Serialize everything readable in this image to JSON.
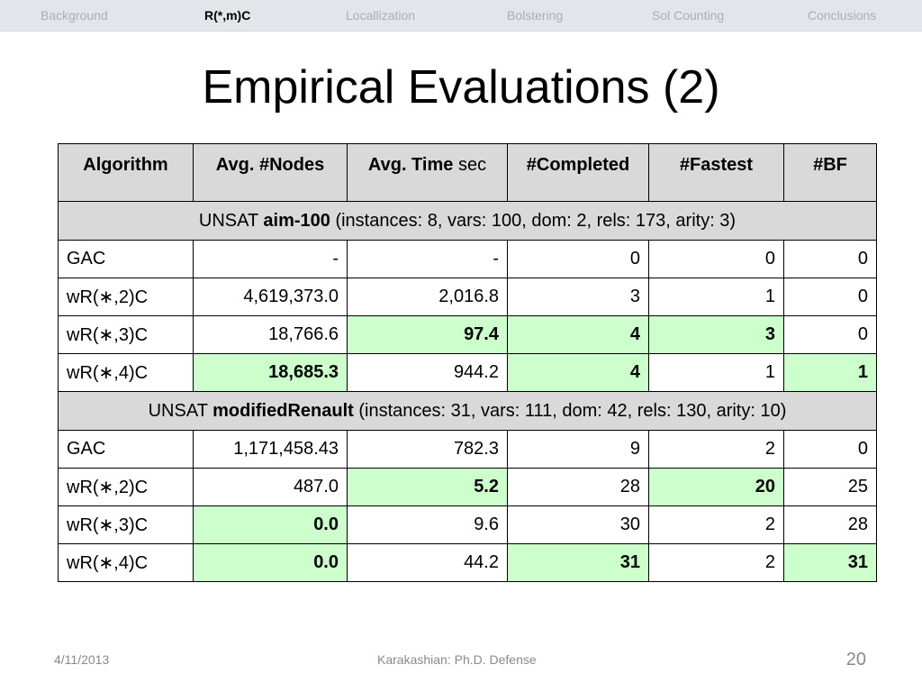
{
  "nav": {
    "items": [
      "Background",
      "R(*,m)C",
      "Locallization",
      "Bolstering",
      "Sol Counting",
      "Conclusions"
    ],
    "active_index": 1
  },
  "title": "Empirical Evaluations (2)",
  "table": {
    "headers": {
      "algorithm": "Algorithm",
      "avg_nodes": "Avg. #Nodes",
      "avg_time": "Avg. Time",
      "avg_time_unit": "sec",
      "completed": "#Completed",
      "fastest": "#Fastest",
      "bf": "#BF"
    },
    "groups": [
      {
        "prefix": "UNSAT ",
        "name": "aim-100",
        "details": " (instances: 8, vars: 100, dom: 2, rels: 173, arity: 3)",
        "rows": [
          {
            "algorithm": "GAC",
            "nodes": "-",
            "time": "-",
            "completed": "0",
            "fastest": "0",
            "bf": "0"
          },
          {
            "algorithm": "wR(∗,2)C",
            "nodes": "4,619,373.0",
            "time": "2,016.8",
            "completed": "3",
            "fastest": "1",
            "bf": "0"
          },
          {
            "algorithm": "wR(∗,3)C",
            "nodes": "18,766.6",
            "time": "97.4",
            "completed": "4",
            "fastest": "3",
            "bf": "0"
          },
          {
            "algorithm": "wR(∗,4)C",
            "nodes": "18,685.3",
            "time": "944.2",
            "completed": "4",
            "fastest": "1",
            "bf": "1"
          }
        ]
      },
      {
        "prefix": "UNSAT ",
        "name": "modifiedRenault",
        "details": " (instances: 31, vars: 111, dom: 42, rels: 130, arity: 10)",
        "rows": [
          {
            "algorithm": "GAC",
            "nodes": "1,171,458.43",
            "time": "782.3",
            "completed": "9",
            "fastest": "2",
            "bf": "0"
          },
          {
            "algorithm": "wR(∗,2)C",
            "nodes": "487.0",
            "time": "5.2",
            "completed": "28",
            "fastest": "20",
            "bf": "25"
          },
          {
            "algorithm": "wR(∗,3)C",
            "nodes": "0.0",
            "time": "9.6",
            "completed": "30",
            "fastest": "2",
            "bf": "28"
          },
          {
            "algorithm": "wR(∗,4)C",
            "nodes": "0.0",
            "time": "44.2",
            "completed": "31",
            "fastest": "2",
            "bf": "31"
          }
        ]
      }
    ],
    "highlight_color": "#ccffcc"
  },
  "footer": {
    "date": "4/11/2013",
    "center": "Karakashian: Ph.D. Defense",
    "page": "20"
  }
}
